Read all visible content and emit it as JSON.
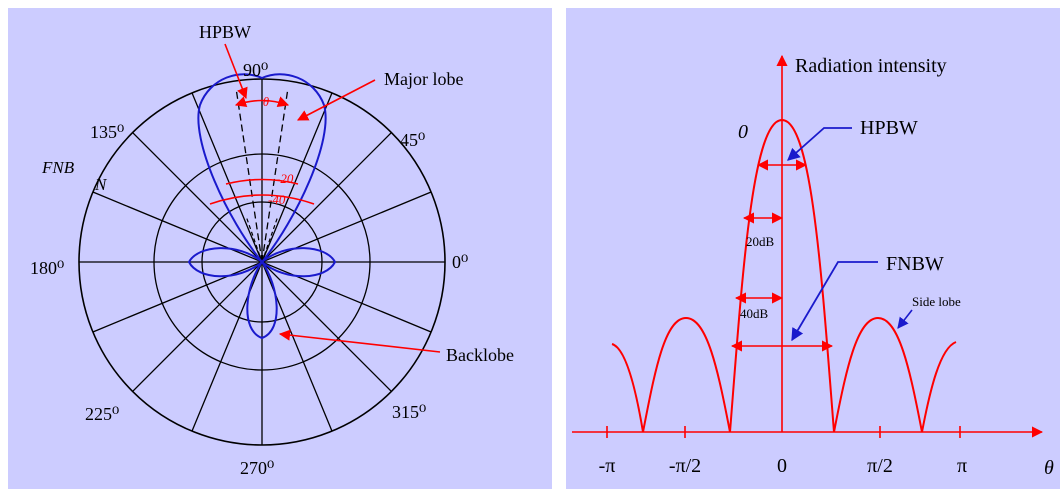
{
  "colors": {
    "background": "#ccccff",
    "grid": "#000000",
    "pattern": "#1a1acc",
    "annotation": "#ff0000",
    "callout": "#1a1acc"
  },
  "polar": {
    "labels": {
      "hpbw": "HPBW",
      "major_lobe": "Major lobe",
      "fnb": "FNB",
      "n": "N",
      "backlobe": "Backlobe",
      "theta": "θ",
      "minus20": "-20",
      "minus40": "-40"
    },
    "angles": {
      "a90": "90⁰",
      "a45": "45⁰",
      "a135": "135⁰",
      "a180": "180⁰",
      "a0": "0⁰",
      "a225": "225⁰",
      "a315": "315⁰",
      "a270": "270⁰"
    }
  },
  "cartesian": {
    "title": "Radiation intensity",
    "peak": "0",
    "labels": {
      "hpbw": "HPBW",
      "fnbw": "FNBW",
      "side_lobe": "Side lobe",
      "db20": "20dB",
      "db40": "40dB",
      "theta_axis": "θ"
    },
    "ticks": [
      "-π",
      "-π/2",
      "0",
      "π/2",
      "π"
    ]
  }
}
